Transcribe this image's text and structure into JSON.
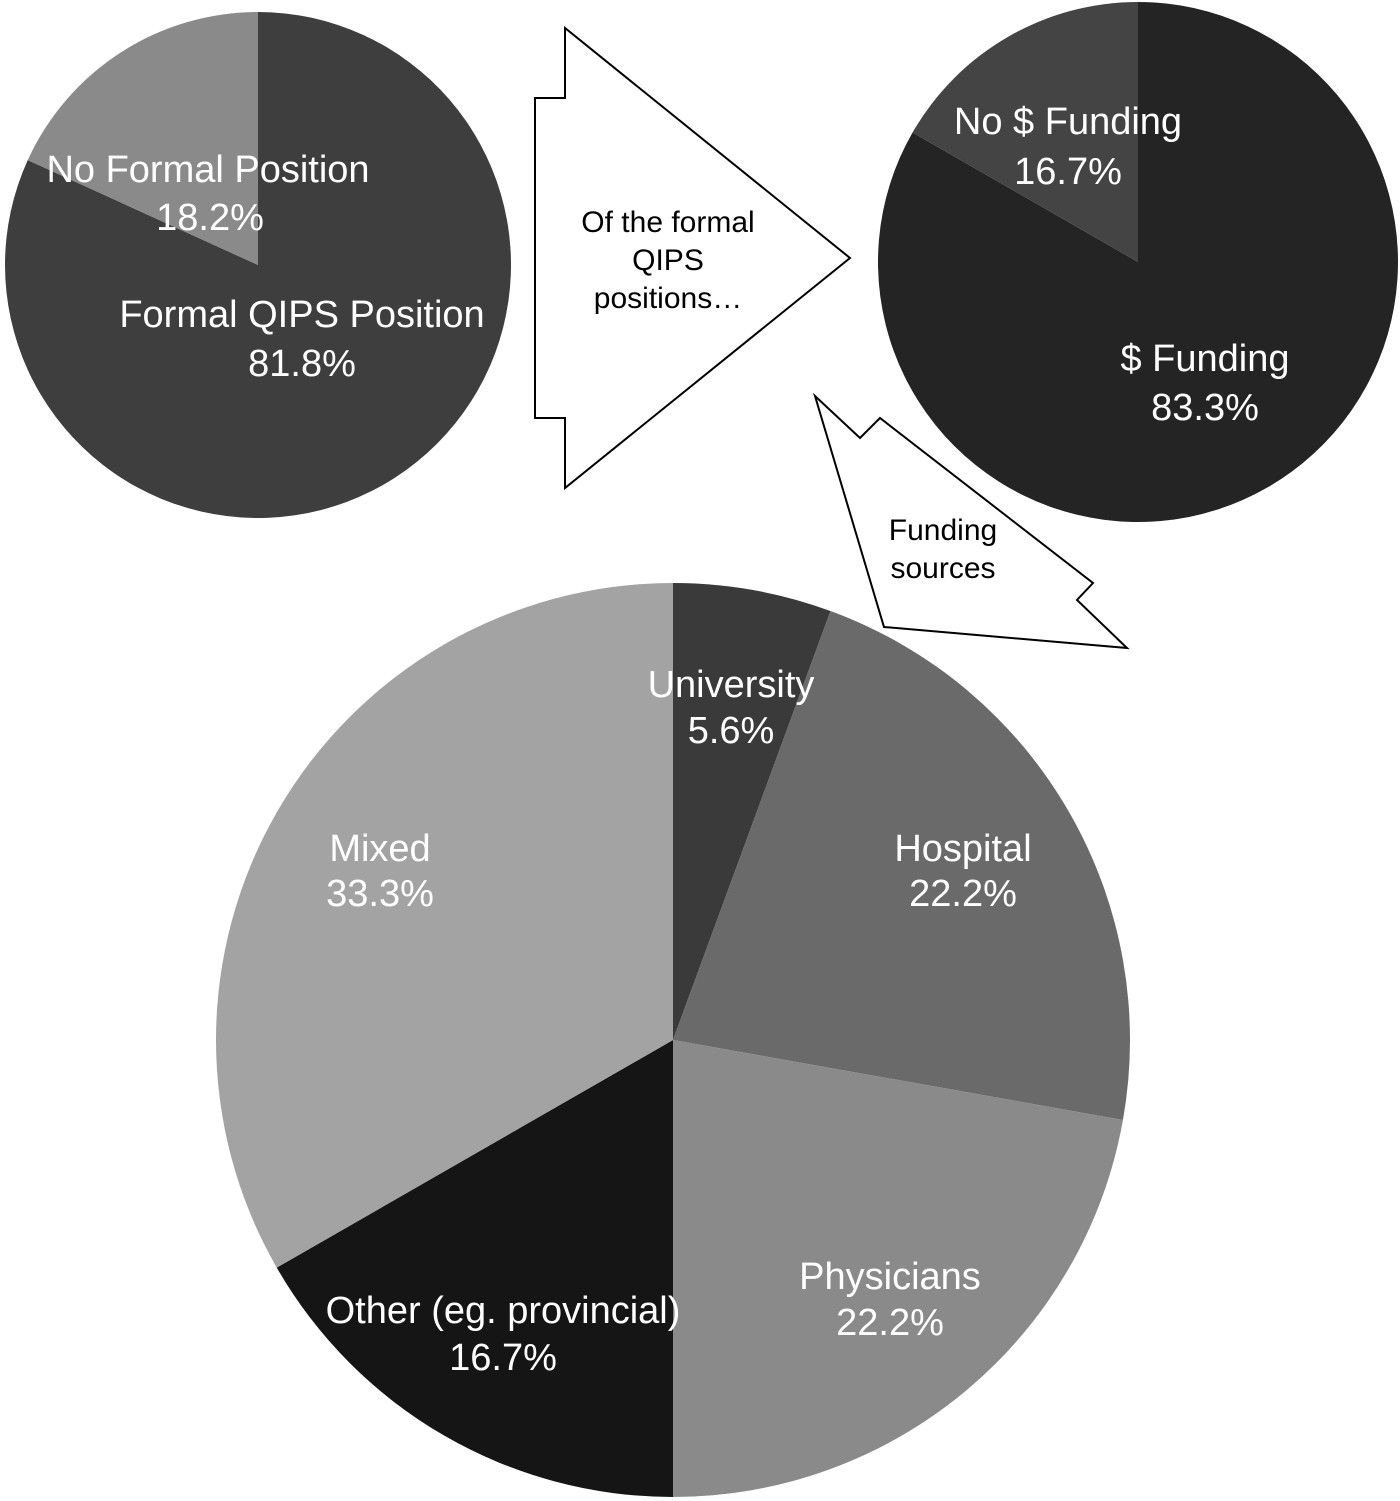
{
  "chart_data": [
    {
      "type": "pie",
      "id": "qips-position",
      "slices": [
        {
          "label": "Formal QIPS Position",
          "pct_text": "81.8%",
          "value": 81.8,
          "color": "#3e3e3e"
        },
        {
          "label": "No Formal Position",
          "pct_text": "18.2%",
          "value": 18.2,
          "color": "#8a8a8a"
        }
      ]
    },
    {
      "type": "pie",
      "id": "funding",
      "slices": [
        {
          "label": "$ Funding",
          "pct_text": "83.3%",
          "value": 83.3,
          "color": "#242424"
        },
        {
          "label": "No $ Funding",
          "pct_text": "16.7%",
          "value": 16.7,
          "color": "#444444"
        }
      ]
    },
    {
      "type": "pie",
      "id": "funding-sources",
      "slices": [
        {
          "label": "University",
          "pct_text": "5.6%",
          "value": 5.6,
          "color": "#3a3a3a"
        },
        {
          "label": "Hospital",
          "pct_text": "22.2%",
          "value": 22.2,
          "color": "#6a6a6a"
        },
        {
          "label": "Physicians",
          "pct_text": "22.2%",
          "value": 22.2,
          "color": "#8a8a8a"
        },
        {
          "label": "Other (eg. provincial)",
          "pct_text": "16.7%",
          "value": 16.7,
          "color": "#151515"
        },
        {
          "label": "Mixed",
          "pct_text": "33.3%",
          "value": 33.3,
          "color": "#a3a3a3"
        }
      ]
    }
  ],
  "arrows": {
    "formal": [
      "Of the formal",
      "QIPS",
      "positions…"
    ],
    "sources": [
      "Funding",
      "sources"
    ]
  }
}
